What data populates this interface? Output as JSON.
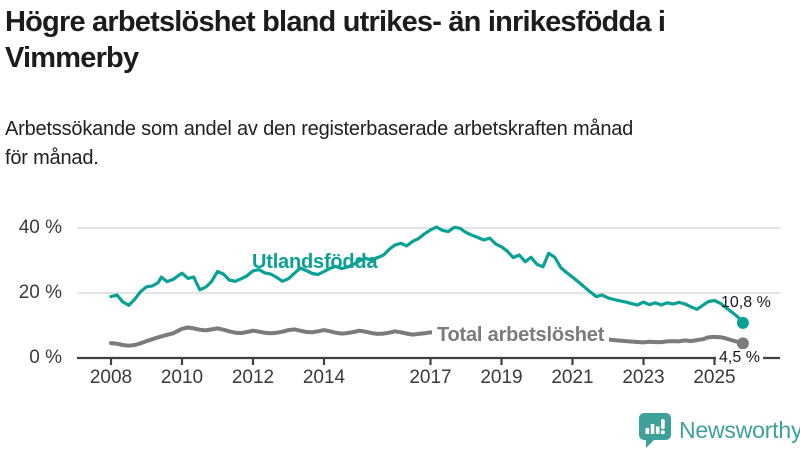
{
  "header": {
    "title_lines": [
      "Högre arbetslöshet bland utrikes- än inrikesfödda i",
      "Vimmerby"
    ],
    "subtitle_lines": [
      "Arbetssökande som andel av den registerbaserade arbetskraften månad",
      "för månad."
    ]
  },
  "logo": {
    "text": "Newsworthy",
    "color": "#3da099"
  },
  "colors": {
    "foreign_born_line": "#0aa195",
    "total_line": "#7b7b7e",
    "axis": "#404040",
    "gridline": "#dcdcdc",
    "text": "#1a1a1a"
  },
  "chart_data": {
    "type": "line",
    "title": "Högre arbetslöshet bland utrikes- än inrikesfödda i Vimmerby",
    "subtitle": "Arbetssökande som andel av den registerbaserade arbetskraften månad för månad.",
    "xlabel": "",
    "ylabel": "",
    "x_unit": "decimal_year",
    "y_unit": "percent",
    "ylim": [
      0,
      44
    ],
    "xlim": [
      2007.1,
      2026.0
    ],
    "grid": "horizontal",
    "legend_position": "inline-labels",
    "yticks": [
      {
        "value": 0,
        "label": "0 %"
      },
      {
        "value": 20,
        "label": "20 %"
      },
      {
        "value": 40,
        "label": "40 %"
      }
    ],
    "xticks": [
      {
        "value": 2008,
        "label": "2008"
      },
      {
        "value": 2010,
        "label": "2010"
      },
      {
        "value": 2012,
        "label": "2012"
      },
      {
        "value": 2014,
        "label": "2014"
      },
      {
        "value": 2017,
        "label": "2017"
      },
      {
        "value": 2019,
        "label": "2019"
      },
      {
        "value": 2021,
        "label": "2021"
      },
      {
        "value": 2023,
        "label": "2023"
      },
      {
        "value": 2025,
        "label": "2025"
      }
    ],
    "series": [
      {
        "name": "Utlandsfödda",
        "color": "#0aa195",
        "end_label": "10,8 %",
        "end_value": 10.8,
        "points": [
          [
            2008.0,
            18.9
          ],
          [
            2008.17,
            19.4
          ],
          [
            2008.33,
            17.3
          ],
          [
            2008.5,
            16.2
          ],
          [
            2008.67,
            18.1
          ],
          [
            2008.83,
            20.4
          ],
          [
            2009.0,
            21.9
          ],
          [
            2009.17,
            22.2
          ],
          [
            2009.33,
            23.2
          ],
          [
            2009.42,
            24.9
          ],
          [
            2009.58,
            23.5
          ],
          [
            2009.75,
            24.2
          ],
          [
            2009.9,
            25.4
          ],
          [
            2010.0,
            26.1
          ],
          [
            2010.17,
            24.5
          ],
          [
            2010.33,
            24.9
          ],
          [
            2010.5,
            21.0
          ],
          [
            2010.67,
            21.8
          ],
          [
            2010.83,
            23.5
          ],
          [
            2011.0,
            26.6
          ],
          [
            2011.17,
            25.8
          ],
          [
            2011.33,
            24.0
          ],
          [
            2011.5,
            23.6
          ],
          [
            2011.67,
            24.4
          ],
          [
            2011.83,
            25.3
          ],
          [
            2012.0,
            26.8
          ],
          [
            2012.17,
            27.2
          ],
          [
            2012.33,
            26.2
          ],
          [
            2012.5,
            25.8
          ],
          [
            2012.67,
            24.8
          ],
          [
            2012.83,
            23.6
          ],
          [
            2013.0,
            24.4
          ],
          [
            2013.17,
            26.1
          ],
          [
            2013.33,
            27.7
          ],
          [
            2013.5,
            26.9
          ],
          [
            2013.67,
            26.0
          ],
          [
            2013.83,
            25.7
          ],
          [
            2014.0,
            26.6
          ],
          [
            2014.17,
            27.6
          ],
          [
            2014.33,
            28.2
          ],
          [
            2014.5,
            27.5
          ],
          [
            2014.67,
            28.0
          ],
          [
            2014.83,
            28.8
          ],
          [
            2015.0,
            29.9
          ],
          [
            2015.17,
            30.7
          ],
          [
            2015.33,
            30.1
          ],
          [
            2015.5,
            30.9
          ],
          [
            2015.67,
            31.6
          ],
          [
            2015.83,
            33.4
          ],
          [
            2016.0,
            34.8
          ],
          [
            2016.17,
            35.3
          ],
          [
            2016.33,
            34.5
          ],
          [
            2016.5,
            35.9
          ],
          [
            2016.67,
            36.8
          ],
          [
            2016.83,
            38.2
          ],
          [
            2017.0,
            39.4
          ],
          [
            2017.17,
            40.3
          ],
          [
            2017.33,
            39.3
          ],
          [
            2017.5,
            38.9
          ],
          [
            2017.67,
            40.2
          ],
          [
            2017.83,
            39.9
          ],
          [
            2018.0,
            38.6
          ],
          [
            2018.17,
            37.8
          ],
          [
            2018.33,
            37.1
          ],
          [
            2018.5,
            36.3
          ],
          [
            2018.67,
            36.9
          ],
          [
            2018.83,
            35.1
          ],
          [
            2019.0,
            34.2
          ],
          [
            2019.17,
            32.8
          ],
          [
            2019.33,
            30.9
          ],
          [
            2019.5,
            31.7
          ],
          [
            2019.67,
            29.6
          ],
          [
            2019.83,
            31.0
          ],
          [
            2020.0,
            28.8
          ],
          [
            2020.17,
            28.1
          ],
          [
            2020.33,
            32.2
          ],
          [
            2020.5,
            31.0
          ],
          [
            2020.67,
            27.8
          ],
          [
            2020.83,
            26.3
          ],
          [
            2021.0,
            24.9
          ],
          [
            2021.17,
            23.4
          ],
          [
            2021.33,
            21.9
          ],
          [
            2021.5,
            20.3
          ],
          [
            2021.67,
            18.9
          ],
          [
            2021.83,
            19.4
          ],
          [
            2022.0,
            18.5
          ],
          [
            2022.17,
            18.0
          ],
          [
            2022.33,
            17.6
          ],
          [
            2022.5,
            17.2
          ],
          [
            2022.67,
            16.7
          ],
          [
            2022.83,
            16.3
          ],
          [
            2023.0,
            17.2
          ],
          [
            2023.17,
            16.4
          ],
          [
            2023.33,
            17.0
          ],
          [
            2023.5,
            16.3
          ],
          [
            2023.67,
            17.0
          ],
          [
            2023.83,
            16.6
          ],
          [
            2024.0,
            17.1
          ],
          [
            2024.17,
            16.6
          ],
          [
            2024.33,
            15.8
          ],
          [
            2024.5,
            15.0
          ],
          [
            2024.67,
            16.2
          ],
          [
            2024.83,
            17.4
          ],
          [
            2025.0,
            17.7
          ],
          [
            2025.17,
            16.8
          ],
          [
            2025.33,
            15.4
          ],
          [
            2025.5,
            14.0
          ],
          [
            2025.65,
            12.7
          ],
          [
            2025.8,
            10.8
          ]
        ]
      },
      {
        "name": "Total arbetslöshet",
        "color": "#7b7b7e",
        "end_label": "4,5 %",
        "end_value": 4.5,
        "points": [
          [
            2008.0,
            4.6
          ],
          [
            2008.17,
            4.4
          ],
          [
            2008.33,
            4.0
          ],
          [
            2008.5,
            3.8
          ],
          [
            2008.67,
            4.0
          ],
          [
            2008.83,
            4.5
          ],
          [
            2009.0,
            5.2
          ],
          [
            2009.25,
            6.1
          ],
          [
            2009.5,
            6.9
          ],
          [
            2009.75,
            7.6
          ],
          [
            2010.0,
            9.0
          ],
          [
            2010.17,
            9.4
          ],
          [
            2010.33,
            9.1
          ],
          [
            2010.5,
            8.7
          ],
          [
            2010.67,
            8.5
          ],
          [
            2010.83,
            8.8
          ],
          [
            2011.0,
            9.1
          ],
          [
            2011.17,
            8.7
          ],
          [
            2011.33,
            8.2
          ],
          [
            2011.5,
            7.8
          ],
          [
            2011.67,
            7.7
          ],
          [
            2011.83,
            8.0
          ],
          [
            2012.0,
            8.4
          ],
          [
            2012.17,
            8.1
          ],
          [
            2012.33,
            7.8
          ],
          [
            2012.5,
            7.6
          ],
          [
            2012.67,
            7.8
          ],
          [
            2012.83,
            8.1
          ],
          [
            2013.0,
            8.6
          ],
          [
            2013.17,
            8.8
          ],
          [
            2013.33,
            8.4
          ],
          [
            2013.5,
            8.0
          ],
          [
            2013.67,
            7.9
          ],
          [
            2013.83,
            8.2
          ],
          [
            2014.0,
            8.6
          ],
          [
            2014.17,
            8.2
          ],
          [
            2014.33,
            7.8
          ],
          [
            2014.5,
            7.5
          ],
          [
            2014.67,
            7.7
          ],
          [
            2014.83,
            8.0
          ],
          [
            2015.0,
            8.4
          ],
          [
            2015.17,
            8.1
          ],
          [
            2015.33,
            7.7
          ],
          [
            2015.5,
            7.4
          ],
          [
            2015.67,
            7.5
          ],
          [
            2015.83,
            7.8
          ],
          [
            2016.0,
            8.2
          ],
          [
            2016.17,
            7.9
          ],
          [
            2016.33,
            7.5
          ],
          [
            2016.5,
            7.2
          ],
          [
            2016.67,
            7.4
          ],
          [
            2016.83,
            7.6
          ],
          [
            2017.0,
            7.9
          ],
          [
            2017.25,
            7.5
          ],
          [
            2017.5,
            7.2
          ],
          [
            2017.75,
            7.4
          ],
          [
            2018.0,
            7.6
          ],
          [
            2018.25,
            7.1
          ],
          [
            2018.5,
            6.6
          ],
          [
            2018.75,
            6.4
          ],
          [
            2019.0,
            6.6
          ],
          [
            2019.25,
            6.3
          ],
          [
            2019.5,
            6.1
          ],
          [
            2019.75,
            6.4
          ],
          [
            2020.0,
            6.8
          ],
          [
            2020.25,
            7.6
          ],
          [
            2020.5,
            8.0
          ],
          [
            2020.75,
            7.6
          ],
          [
            2021.0,
            7.2
          ],
          [
            2021.25,
            6.7
          ],
          [
            2021.5,
            6.2
          ],
          [
            2021.75,
            5.9
          ],
          [
            2022.0,
            5.7
          ],
          [
            2022.25,
            5.4
          ],
          [
            2022.5,
            5.2
          ],
          [
            2022.75,
            5.0
          ],
          [
            2023.0,
            4.8
          ],
          [
            2023.17,
            5.0
          ],
          [
            2023.33,
            4.9
          ],
          [
            2023.5,
            4.9
          ],
          [
            2023.67,
            5.1
          ],
          [
            2023.83,
            5.2
          ],
          [
            2024.0,
            5.1
          ],
          [
            2024.17,
            5.4
          ],
          [
            2024.33,
            5.2
          ],
          [
            2024.5,
            5.5
          ],
          [
            2024.67,
            5.8
          ],
          [
            2024.83,
            6.4
          ],
          [
            2025.0,
            6.5
          ],
          [
            2025.17,
            6.4
          ],
          [
            2025.33,
            6.0
          ],
          [
            2025.5,
            5.4
          ],
          [
            2025.65,
            5.0
          ],
          [
            2025.8,
            4.5
          ]
        ]
      }
    ]
  }
}
